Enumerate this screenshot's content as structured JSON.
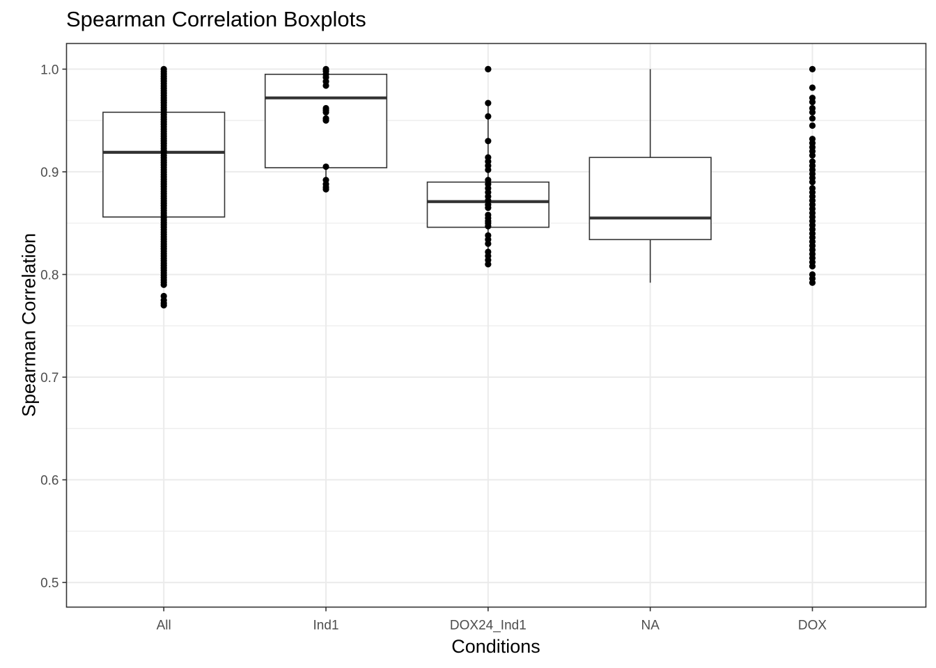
{
  "chart_data": {
    "type": "box",
    "title": "Spearman Correlation Boxplots",
    "xlabel": "Conditions",
    "ylabel": "Spearman Correlation",
    "ylim": [
      0.476,
      1.025
    ],
    "yticks": [
      0.5,
      0.6,
      0.7,
      0.8,
      0.9,
      1.0
    ],
    "ytick_labels": [
      "0.5",
      "0.6",
      "0.7",
      "0.8",
      "0.9",
      "1.0"
    ],
    "grid": true,
    "categories": [
      "All",
      "Ind1",
      "DOX24_Ind1",
      "NA",
      "DOX"
    ],
    "boxes": [
      {
        "category": "All",
        "lower_whisker": 0.79,
        "q1": 0.856,
        "median": 0.919,
        "q3": 0.958,
        "upper_whisker": 1.0,
        "outliers": [
          0.77,
          0.772,
          0.775,
          0.779
        ],
        "points": {
          "dense_from": 0.79,
          "dense_to": 1.0
        }
      },
      {
        "category": "Ind1",
        "lower_whisker": 0.883,
        "q1": 0.904,
        "median": 0.972,
        "q3": 0.995,
        "upper_whisker": 1.0,
        "outliers": [],
        "points": [
          1.0,
          0.998,
          0.995,
          0.992,
          0.988,
          0.984,
          0.962,
          0.96,
          0.958,
          0.952,
          0.95,
          0.905,
          0.892,
          0.888,
          0.885,
          0.883
        ]
      },
      {
        "category": "DOX24_Ind1",
        "lower_whisker": 0.81,
        "q1": 0.846,
        "median": 0.871,
        "q3": 0.89,
        "upper_whisker": 0.967,
        "outliers": [
          1.0
        ],
        "points": [
          1.0,
          0.967,
          0.954,
          0.93,
          0.914,
          0.91,
          0.906,
          0.902,
          0.892,
          0.888,
          0.884,
          0.88,
          0.876,
          0.872,
          0.868,
          0.865,
          0.858,
          0.855,
          0.852,
          0.85,
          0.847,
          0.838,
          0.834,
          0.83,
          0.822,
          0.818,
          0.814,
          0.81
        ]
      },
      {
        "category": "NA",
        "lower_whisker": 0.792,
        "q1": 0.834,
        "median": 0.855,
        "q3": 0.914,
        "upper_whisker": 1.0,
        "outliers": [],
        "points": []
      },
      {
        "category": "DOX",
        "box": false,
        "outliers": [],
        "points": [
          1.0,
          0.982,
          0.972,
          0.968,
          0.962,
          0.958,
          0.952,
          0.945,
          0.932,
          0.928,
          0.924,
          0.92,
          0.916,
          0.91,
          0.906,
          0.902,
          0.898,
          0.894,
          0.89,
          0.884,
          0.88,
          0.876,
          0.872,
          0.868,
          0.864,
          0.86,
          0.856,
          0.852,
          0.848,
          0.844,
          0.84,
          0.836,
          0.832,
          0.828,
          0.824,
          0.82,
          0.816,
          0.812,
          0.808,
          0.8,
          0.796,
          0.792
        ]
      }
    ],
    "colors": {
      "box_edge": "#333333",
      "median": "#333333",
      "point": "#000000",
      "grid": "#ebebeb",
      "panel_border": "#333333"
    }
  }
}
